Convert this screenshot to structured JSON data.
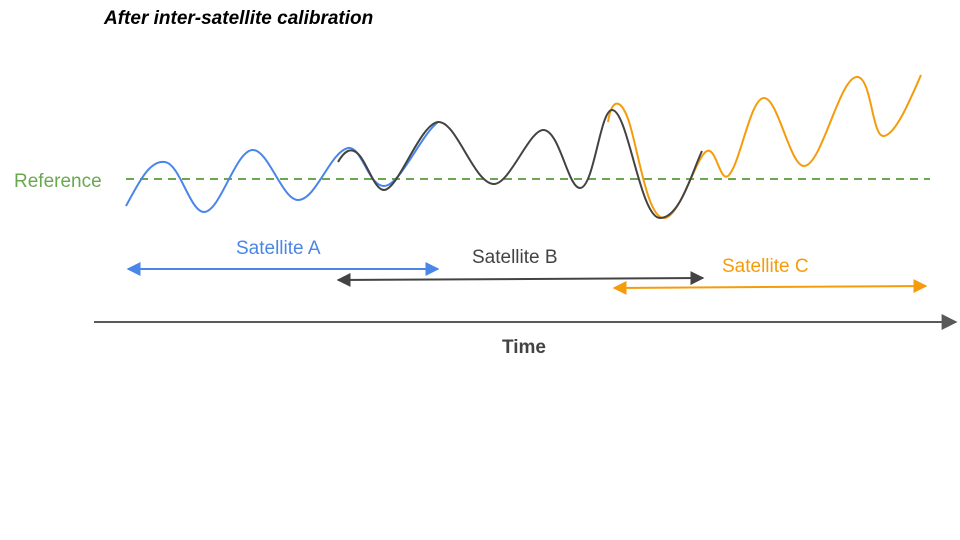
{
  "title": "After inter-satellite calibration",
  "reference": {
    "label": "Reference",
    "color": "#6aa84f"
  },
  "satellites": [
    {
      "label": "Satellite A",
      "color": "#4a86e8"
    },
    {
      "label": "Satellite B",
      "color": "#434343"
    },
    {
      "label": "Satellite C",
      "color": "#f59c0c"
    }
  ],
  "axis": {
    "label": "Time",
    "color": "#595959"
  }
}
